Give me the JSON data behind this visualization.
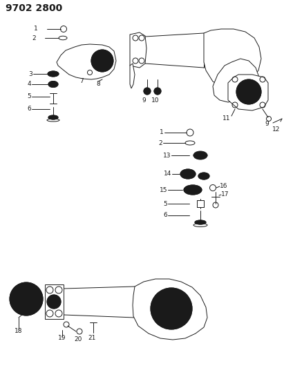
{
  "title": "9702 2800",
  "bg_color": "#ffffff",
  "line_color": "#1a1a1a",
  "text_color": "#1a1a1a",
  "title_fontsize": 10,
  "label_fontsize": 6.5,
  "fig_width": 4.11,
  "fig_height": 5.33,
  "dpi": 100
}
